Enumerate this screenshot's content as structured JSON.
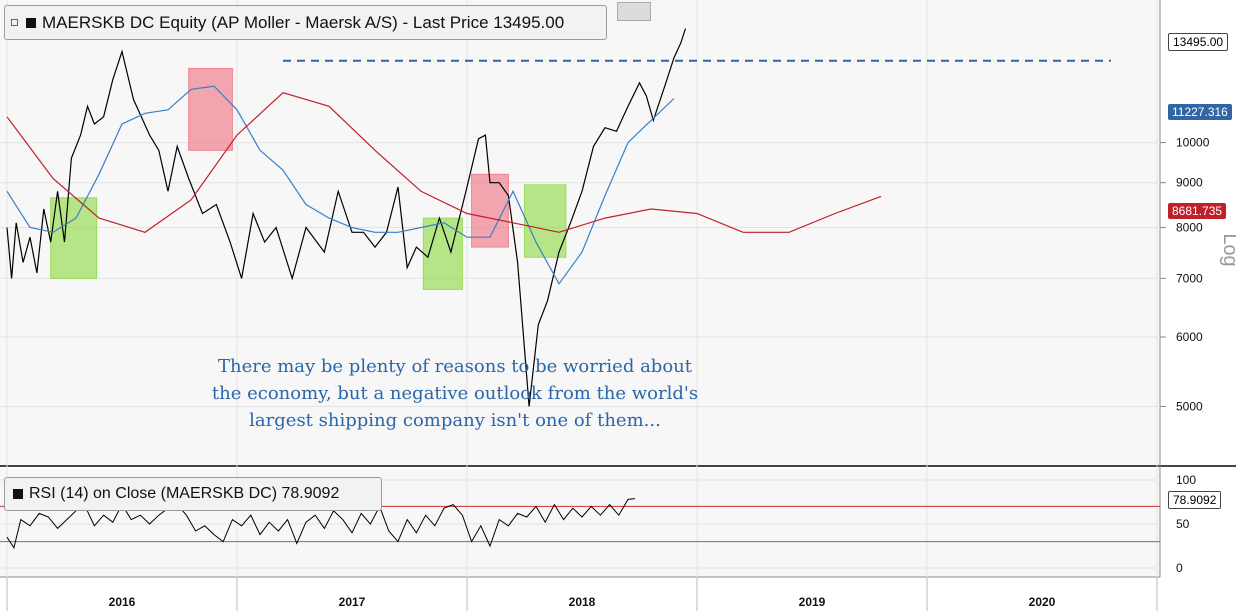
{
  "header": {
    "title": "MAERSKB DC Equity (AP Moller - Maersk A/S) - Last Price 13495.00"
  },
  "rsi_panel": {
    "title": "RSI (14)  on Close (MAERSKB DC) 78.9092"
  },
  "annotation": {
    "line1": "There may be plenty of reasons to be worried about",
    "line2": "the economy, but a negative outlook from the world's",
    "line3": "largest shipping company isn't one of them..."
  },
  "labels": {
    "last_price": "13495.00",
    "ma_short": "11227.316",
    "ma_long": "8681.735",
    "rsi_last": "78.9092",
    "scale_label": "Log"
  },
  "colors": {
    "price": "#000000",
    "ma_short": "#3b7fc4",
    "ma_long": "#c0202a",
    "green_box": "#99dd55",
    "red_box": "#f08090",
    "rsi_upper": "#d03030",
    "rsi_lower": "#30a030",
    "annotation": "#2a66a8"
  },
  "chart_data": [
    {
      "type": "line",
      "title": "MAERSKB DC Equity (AP Moller - Maersk A/S) - Last Price 13495.00",
      "scale": "log",
      "ylim": [
        4700,
        13800
      ],
      "yticks": [
        5000,
        6000,
        7000,
        8000,
        9000,
        10000
      ],
      "x_categories": [
        "2016",
        "2017",
        "2018",
        "2019",
        "2020"
      ],
      "series": [
        {
          "name": "Last Price",
          "points": [
            [
              0,
              8000
            ],
            [
              0.02,
              7000
            ],
            [
              0.04,
              8100
            ],
            [
              0.07,
              7300
            ],
            [
              0.1,
              7800
            ],
            [
              0.13,
              7100
            ],
            [
              0.16,
              8400
            ],
            [
              0.19,
              7700
            ],
            [
              0.22,
              8800
            ],
            [
              0.25,
              7700
            ],
            [
              0.28,
              9600
            ],
            [
              0.32,
              10200
            ],
            [
              0.35,
              11000
            ],
            [
              0.38,
              10500
            ],
            [
              0.42,
              10700
            ],
            [
              0.46,
              11800
            ],
            [
              0.5,
              12700
            ],
            [
              0.55,
              11200
            ],
            [
              0.62,
              10200
            ],
            [
              0.66,
              9800
            ],
            [
              0.7,
              8800
            ],
            [
              0.74,
              9900
            ],
            [
              0.79,
              9100
            ],
            [
              0.85,
              8300
            ],
            [
              0.91,
              8500
            ],
            [
              0.97,
              7700
            ],
            [
              1.02,
              7000
            ],
            [
              1.07,
              8300
            ],
            [
              1.12,
              7700
            ],
            [
              1.17,
              8000
            ],
            [
              1.24,
              7000
            ],
            [
              1.3,
              8000
            ],
            [
              1.38,
              7500
            ],
            [
              1.44,
              8800
            ],
            [
              1.5,
              7900
            ],
            [
              1.55,
              7900
            ],
            [
              1.6,
              7600
            ],
            [
              1.65,
              7900
            ],
            [
              1.7,
              8900
            ],
            [
              1.74,
              7200
            ],
            [
              1.78,
              7600
            ],
            [
              1.83,
              7400
            ],
            [
              1.88,
              8200
            ],
            [
              1.93,
              7500
            ],
            [
              2.0,
              8900
            ],
            [
              2.05,
              10100
            ],
            [
              2.08,
              10200
            ],
            [
              2.1,
              9000
            ],
            [
              2.14,
              9000
            ],
            [
              2.18,
              8700
            ],
            [
              2.22,
              7300
            ],
            [
              2.27,
              5000
            ],
            [
              2.31,
              6200
            ],
            [
              2.35,
              6600
            ],
            [
              2.4,
              7500
            ],
            [
              2.45,
              8100
            ],
            [
              2.5,
              8800
            ],
            [
              2.55,
              9900
            ],
            [
              2.6,
              10400
            ],
            [
              2.65,
              10300
            ],
            [
              2.7,
              11000
            ],
            [
              2.75,
              11700
            ],
            [
              2.78,
              11300
            ],
            [
              2.81,
              10600
            ],
            [
              2.86,
              11600
            ],
            [
              2.9,
              12500
            ],
            [
              2.93,
              13000
            ],
            [
              2.95,
              13495
            ]
          ]
        },
        {
          "name": "",
          "points": [
            [
              0,
              8800
            ],
            [
              0.1,
              8000
            ],
            [
              0.2,
              7900
            ],
            [
              0.3,
              8200
            ],
            [
              0.4,
              9200
            ],
            [
              0.5,
              10500
            ],
            [
              0.6,
              10800
            ],
            [
              0.7,
              10900
            ],
            [
              0.8,
              11500
            ],
            [
              0.9,
              11600
            ],
            [
              1.0,
              10900
            ],
            [
              1.1,
              9800
            ],
            [
              1.2,
              9300
            ],
            [
              1.3,
              8500
            ],
            [
              1.4,
              8200
            ],
            [
              1.5,
              8000
            ],
            [
              1.6,
              7900
            ],
            [
              1.7,
              7900
            ],
            [
              1.8,
              8000
            ],
            [
              1.9,
              8100
            ],
            [
              2.0,
              7800
            ],
            [
              2.1,
              7800
            ],
            [
              2.2,
              8800
            ],
            [
              2.3,
              7700
            ],
            [
              2.4,
              6900
            ],
            [
              2.5,
              7500
            ],
            [
              2.6,
              8700
            ],
            [
              2.7,
              10000
            ],
            [
              2.8,
              10600
            ],
            [
              2.9,
              11227
            ]
          ]
        },
        {
          "name": "",
          "points": [
            [
              0,
              10700
            ],
            [
              0.2,
              9100
            ],
            [
              0.4,
              8200
            ],
            [
              0.6,
              7900
            ],
            [
              0.8,
              8600
            ],
            [
              1.0,
              10200
            ],
            [
              1.2,
              11400
            ],
            [
              1.4,
              11000
            ],
            [
              1.6,
              9800
            ],
            [
              1.8,
              8800
            ],
            [
              2.0,
              8300
            ],
            [
              2.2,
              8100
            ],
            [
              2.4,
              7900
            ],
            [
              2.6,
              8200
            ],
            [
              2.8,
              8400
            ],
            [
              3.0,
              8300
            ],
            [
              3.2,
              7900
            ],
            [
              3.4,
              7900
            ],
            [
              3.6,
              8300
            ],
            [
              3.8,
              8681
            ]
          ]
        }
      ],
      "annotations": [
        {
          "text": "There may be plenty of reasons to be worried about the economy, but a negative outlook from the world's largest shipping company isn't one of them...",
          "color": "#2a66a8"
        }
      ],
      "highlight_regions": [
        {
          "color": "green",
          "x0": 0.19,
          "x1": 0.39,
          "y0": 7000,
          "y1": 8650
        },
        {
          "color": "red",
          "x0": 0.79,
          "x1": 0.98,
          "y0": 9800,
          "y1": 12150
        },
        {
          "color": "green",
          "x0": 1.81,
          "x1": 1.98,
          "y0": 6800,
          "y1": 8200
        },
        {
          "color": "red",
          "x0": 2.02,
          "x1": 2.18,
          "y0": 7600,
          "y1": 9200
        },
        {
          "color": "green",
          "x0": 2.25,
          "x1": 2.43,
          "y0": 7400,
          "y1": 8950
        }
      ],
      "reference_line": {
        "value": 12400,
        "style": "dashed",
        "color": "#2a66a8"
      },
      "grid": true
    },
    {
      "type": "line",
      "title": "RSI (14)  on Close (MAERSKB DC) 78.9092",
      "ylim": [
        0,
        100
      ],
      "yticks": [
        0,
        50,
        100
      ],
      "thresholds": [
        70,
        30
      ],
      "series": [
        {
          "name": "RSI (14)",
          "points": [
            [
              0,
              35
            ],
            [
              0.03,
              23
            ],
            [
              0.06,
              55
            ],
            [
              0.1,
              48
            ],
            [
              0.14,
              62
            ],
            [
              0.18,
              58
            ],
            [
              0.22,
              45
            ],
            [
              0.26,
              55
            ],
            [
              0.3,
              65
            ],
            [
              0.34,
              70
            ],
            [
              0.38,
              48
            ],
            [
              0.42,
              60
            ],
            [
              0.46,
              52
            ],
            [
              0.5,
              72
            ],
            [
              0.54,
              55
            ],
            [
              0.58,
              60
            ],
            [
              0.62,
              50
            ],
            [
              0.66,
              60
            ],
            [
              0.7,
              68
            ],
            [
              0.74,
              72
            ],
            [
              0.78,
              60
            ],
            [
              0.82,
              42
            ],
            [
              0.86,
              48
            ],
            [
              0.9,
              38
            ],
            [
              0.94,
              30
            ],
            [
              0.98,
              55
            ],
            [
              1.02,
              48
            ],
            [
              1.06,
              60
            ],
            [
              1.1,
              38
            ],
            [
              1.14,
              52
            ],
            [
              1.18,
              42
            ],
            [
              1.22,
              55
            ],
            [
              1.26,
              28
            ],
            [
              1.3,
              52
            ],
            [
              1.34,
              60
            ],
            [
              1.38,
              45
            ],
            [
              1.42,
              65
            ],
            [
              1.46,
              55
            ],
            [
              1.5,
              40
            ],
            [
              1.54,
              62
            ],
            [
              1.58,
              50
            ],
            [
              1.62,
              70
            ],
            [
              1.66,
              42
            ],
            [
              1.7,
              30
            ],
            [
              1.74,
              55
            ],
            [
              1.78,
              40
            ],
            [
              1.82,
              60
            ],
            [
              1.86,
              48
            ],
            [
              1.9,
              68
            ],
            [
              1.94,
              72
            ],
            [
              1.98,
              60
            ],
            [
              2.02,
              30
            ],
            [
              2.06,
              48
            ],
            [
              2.1,
              25
            ],
            [
              2.14,
              55
            ],
            [
              2.18,
              48
            ],
            [
              2.22,
              62
            ],
            [
              2.26,
              58
            ],
            [
              2.3,
              70
            ],
            [
              2.34,
              52
            ],
            [
              2.38,
              72
            ],
            [
              2.42,
              55
            ],
            [
              2.46,
              68
            ],
            [
              2.5,
              58
            ],
            [
              2.54,
              70
            ],
            [
              2.58,
              60
            ],
            [
              2.62,
              72
            ],
            [
              2.66,
              60
            ],
            [
              2.7,
              78
            ],
            [
              2.73,
              78.9
            ]
          ]
        }
      ]
    }
  ]
}
